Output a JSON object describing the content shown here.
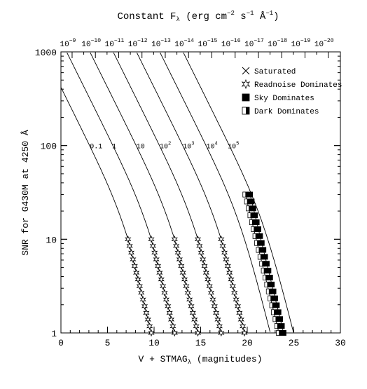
{
  "chart_data": {
    "type": "line",
    "title": "Constant F",
    "title_sub": "λ",
    "title_units": "(erg cm",
    "title_units_sup1": "−2",
    "title_units_mid": " s",
    "title_units_sup2": "−1",
    "title_units_end": " Å",
    "title_units_sup3": "−1",
    "title_units_close": ")",
    "xlabel": "V + STMAG",
    "xlabel_sub": "λ",
    "xlabel_units": " (magnitudes)",
    "ylabel": "SNR for G430M at 4250 Å",
    "xlim": [
      0,
      30
    ],
    "ylim": [
      1,
      1000
    ],
    "yscale": "log",
    "x_ticks": [
      "0",
      "5",
      "10",
      "15",
      "20",
      "25",
      "30"
    ],
    "y_ticks": [
      "1",
      "10",
      "100",
      "1000"
    ],
    "top_axis": {
      "label": "Constant Fλ",
      "ticks": [
        {
          "mant": "10",
          "exp": "−9"
        },
        {
          "mant": "10",
          "exp": "−10"
        },
        {
          "mant": "10",
          "exp": "−11"
        },
        {
          "mant": "10",
          "exp": "−12"
        },
        {
          "mant": "10",
          "exp": "−13"
        },
        {
          "mant": "10",
          "exp": "−14"
        },
        {
          "mant": "10",
          "exp": "−15"
        },
        {
          "mant": "10",
          "exp": "−16"
        },
        {
          "mant": "10",
          "exp": "−17"
        },
        {
          "mant": "10",
          "exp": "−18"
        },
        {
          "mant": "10",
          "exp": "−19"
        },
        {
          "mant": "10",
          "exp": "−20"
        }
      ]
    },
    "series": [
      {
        "name": "0.1",
        "sup": "",
        "m_snr10": 7.2
      },
      {
        "name": "1",
        "sup": "",
        "m_snr10": 9.7
      },
      {
        "name": "10",
        "sup": "",
        "m_snr10": 12.2
      },
      {
        "name": "10",
        "sup": "2",
        "m_snr10": 14.7
      },
      {
        "name": "10",
        "sup": "3",
        "m_snr10": 17.2
      },
      {
        "name": "10",
        "sup": "4",
        "m_snr10": 19.7
      },
      {
        "name": "10",
        "sup": "5",
        "m_snr10": 22.2
      }
    ],
    "legend": {
      "position": "top-right",
      "items": [
        {
          "marker": "saturated",
          "label": "Saturated"
        },
        {
          "marker": "readnoise",
          "label": "Readnoise Dominates"
        },
        {
          "marker": "sky",
          "label": "Sky Dominates"
        },
        {
          "marker": "dark",
          "label": "Dark Dominates"
        }
      ]
    }
  }
}
